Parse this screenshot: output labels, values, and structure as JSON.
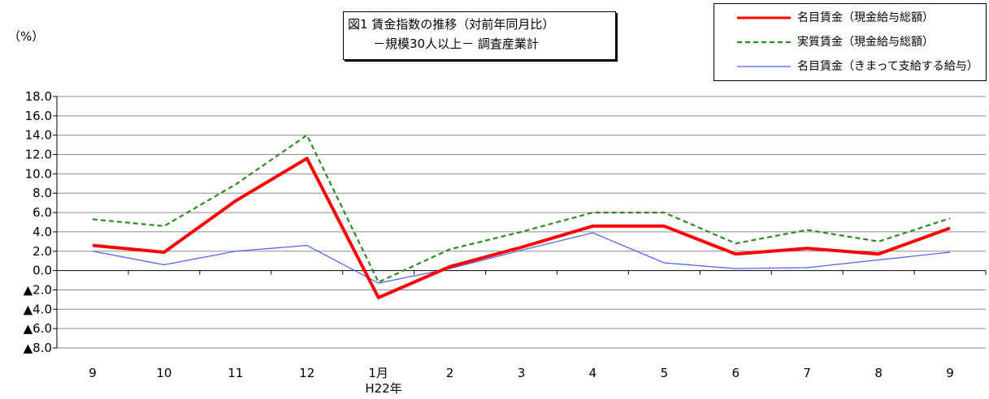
{
  "title": {
    "line1": "図1  賃金指数の推移（対前年同月比）",
    "line2": "－規模30人以上－  調査産業計"
  },
  "unit_label": "（%）",
  "year_label": "H22年",
  "colors": {
    "nominal_total": "#ff0000",
    "real_total": "#2e8b22",
    "nominal_scheduled": "#4a5cff",
    "grid": "#8c8c8c",
    "axis": "#000000"
  },
  "chart_data": {
    "type": "line",
    "categories": [
      "9",
      "10",
      "11",
      "12",
      "1月",
      "2",
      "3",
      "4",
      "5",
      "6",
      "7",
      "8",
      "9"
    ],
    "ylim": [
      -8,
      18
    ],
    "yticks": [
      18,
      16,
      14,
      12,
      10,
      8,
      6,
      4,
      2,
      0,
      -2,
      -4,
      -6,
      -8
    ],
    "ytick_labels": [
      "18.0",
      "16.0",
      "14.0",
      "12.0",
      "10.0",
      "8.0",
      "6.0",
      "4.0",
      "2.0",
      "0.0",
      "▲2.0",
      "▲4.0",
      "▲6.0",
      "▲8.0"
    ],
    "grid": true,
    "legend_position": "top-right",
    "series": [
      {
        "name": "名目賃金（現金給与総額）",
        "style": "solid-thick",
        "values": [
          2.6,
          1.9,
          7.2,
          11.6,
          -2.8,
          0.4,
          2.4,
          4.6,
          4.6,
          1.7,
          2.3,
          1.7,
          4.4
        ]
      },
      {
        "name": "実質賃金（現金給与総額）",
        "style": "dashed",
        "values": [
          5.3,
          4.6,
          8.9,
          14.0,
          -1.2,
          2.2,
          4.0,
          6.0,
          6.0,
          2.8,
          4.2,
          3.0,
          5.4
        ]
      },
      {
        "name": "名目賃金（きまって支給する給与）",
        "style": "solid-thin",
        "values": [
          2.0,
          0.6,
          2.0,
          2.6,
          -1.3,
          0.2,
          2.1,
          3.9,
          0.8,
          0.2,
          0.3,
          1.1,
          1.9
        ]
      }
    ]
  }
}
